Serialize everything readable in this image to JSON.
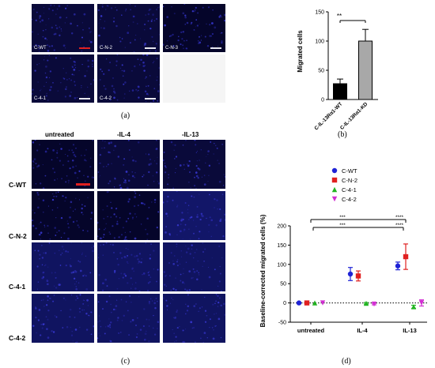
{
  "panel_a": {
    "caption": "(a)",
    "tiles": [
      {
        "label": "C-WT",
        "scale_color": "#e02020"
      },
      {
        "label": "C-N-2",
        "scale_color": "#e8e8f0"
      },
      {
        "label": "C-N-3",
        "scale_color": "#e8e8f0"
      },
      {
        "label": "C-4-1",
        "scale_color": "#e8e8f0"
      },
      {
        "label": "C-4-2",
        "scale_color": "#e8e8f0"
      }
    ]
  },
  "panel_b": {
    "caption": "(b)",
    "significance": "**"
  },
  "panel_c": {
    "caption": "(c)",
    "col_headers": [
      "untreated",
      "-IL-4",
      "-IL-13"
    ],
    "row_headers": [
      "C-WT",
      "C-N-2",
      "C-4-1",
      "C-4-2"
    ]
  },
  "panel_d": {
    "caption": "(d)",
    "sig_top": [
      "***",
      "****"
    ],
    "sig_bottom": [
      "***",
      "****"
    ]
  },
  "chart_data": [
    {
      "type": "bar",
      "ylabel": "Migrated cells",
      "categories": [
        "C-IL-13Rα1-WT",
        "C-IL-13Rα1-KD"
      ],
      "values": [
        27,
        100
      ],
      "errors": [
        8,
        20
      ],
      "colors": [
        "#000000",
        "#a8a8a8"
      ],
      "ylim": [
        0,
        150
      ],
      "yticks": [
        0,
        50,
        100,
        150
      ]
    },
    {
      "type": "scatter",
      "ylabel": "Baseline-corrected migrated cells (%)",
      "categories": [
        "untreated",
        "IL-4",
        "IL-13"
      ],
      "ylim": [
        -50,
        200
      ],
      "yticks": [
        -50,
        0,
        50,
        100,
        150,
        200
      ],
      "legend_position": "top",
      "series": [
        {
          "name": "C-WT",
          "color": "#1f23d6",
          "marker": "circle",
          "values": [
            0,
            75,
            96
          ],
          "errors": [
            0,
            17,
            10
          ]
        },
        {
          "name": "C-N-2",
          "color": "#e02020",
          "marker": "square",
          "values": [
            0,
            70,
            120
          ],
          "errors": [
            0,
            13,
            33
          ]
        },
        {
          "name": "C-4-1",
          "color": "#22b422",
          "marker": "triangle-up",
          "values": [
            0,
            -1,
            -10
          ],
          "errors": [
            0,
            2,
            4
          ]
        },
        {
          "name": "C-4-2",
          "color": "#d22ed2",
          "marker": "triangle-down",
          "values": [
            0,
            -3,
            0
          ],
          "errors": [
            0,
            2,
            8
          ]
        }
      ]
    }
  ]
}
